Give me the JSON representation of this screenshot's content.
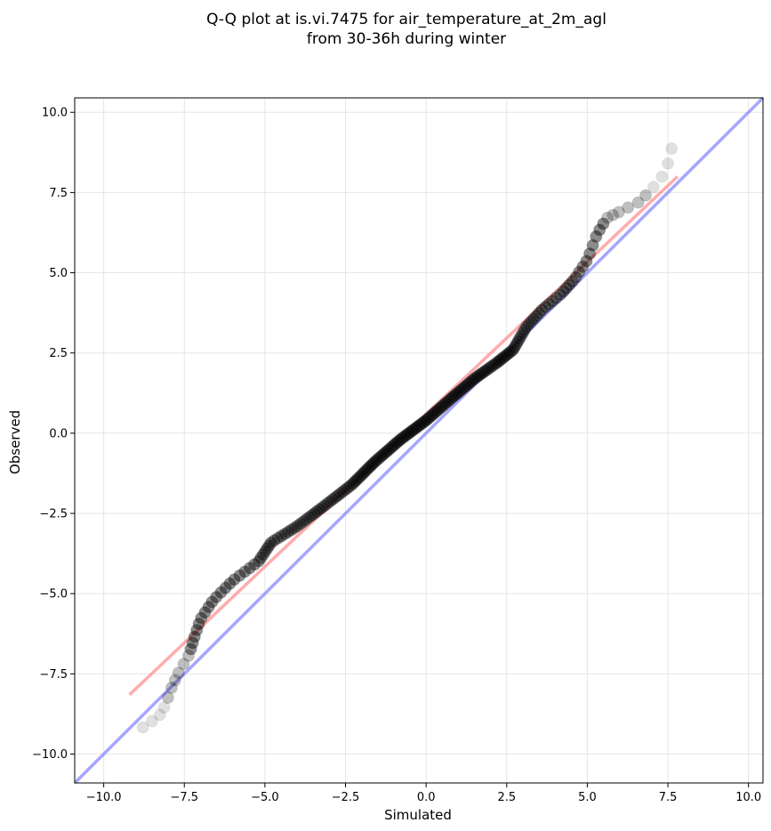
{
  "chart_data": {
    "type": "scatter",
    "title_lines": [
      "Q-Q plot at is.vi.7475 for air_temperature_at_2m_agl",
      "from 30-36h during winter"
    ],
    "xlabel": "Simulated",
    "ylabel": "Observed",
    "xlim": [
      -10.9,
      10.45
    ],
    "ylim": [
      -10.9,
      10.45
    ],
    "xticks": [
      -10.0,
      -7.5,
      -5.0,
      -2.5,
      0.0,
      2.5,
      5.0,
      7.5,
      10.0
    ],
    "yticks": [
      -10.0,
      -7.5,
      -5.0,
      -2.5,
      0.0,
      2.5,
      5.0,
      7.5,
      10.0
    ],
    "xtick_labels": [
      "−10.0",
      "−7.5",
      "−5.0",
      "−2.5",
      "0.0",
      "2.5",
      "5.0",
      "7.5",
      "10.0"
    ],
    "ytick_labels": [
      "−10.0",
      "−7.5",
      "−5.0",
      "−2.5",
      "0.0",
      "2.5",
      "5.0",
      "7.5",
      "10.0"
    ],
    "grid": true,
    "reference_line": {
      "from": [
        -10.9,
        -10.9
      ],
      "to": [
        10.45,
        10.45
      ],
      "color": "#8080ff"
    },
    "fit_line": {
      "from": [
        -9.2,
        -8.15
      ],
      "to": [
        7.8,
        8.0
      ],
      "color": "#ff8080"
    },
    "quantile_curve": [
      [
        -9.2,
        -9.9
      ],
      [
        -9.0,
        -9.35
      ],
      [
        -8.7,
        -9.1
      ],
      [
        -8.3,
        -8.85
      ],
      [
        -8.1,
        -8.5
      ],
      [
        -7.9,
        -7.95
      ],
      [
        -7.7,
        -7.5
      ],
      [
        -7.35,
        -6.9
      ],
      [
        -7.2,
        -6.4
      ],
      [
        -7.0,
        -5.8
      ],
      [
        -6.6,
        -5.2
      ],
      [
        -6.0,
        -4.6
      ],
      [
        -5.2,
        -4.0
      ],
      [
        -4.8,
        -3.4
      ],
      [
        -4.0,
        -2.9
      ],
      [
        -3.2,
        -2.3
      ],
      [
        -2.3,
        -1.6
      ],
      [
        -1.6,
        -0.9
      ],
      [
        -0.8,
        -0.2
      ],
      [
        0.0,
        0.4
      ],
      [
        0.8,
        1.1
      ],
      [
        1.5,
        1.7
      ],
      [
        2.2,
        2.2
      ],
      [
        2.7,
        2.6
      ],
      [
        3.1,
        3.3
      ],
      [
        3.6,
        3.85
      ],
      [
        4.2,
        4.35
      ],
      [
        4.6,
        4.8
      ],
      [
        5.0,
        5.4
      ],
      [
        5.3,
        6.2
      ],
      [
        5.6,
        6.7
      ],
      [
        6.0,
        6.9
      ],
      [
        6.6,
        7.2
      ],
      [
        7.0,
        7.6
      ],
      [
        7.4,
        8.1
      ],
      [
        7.6,
        8.7
      ],
      [
        7.65,
        9.3
      ],
      [
        7.8,
        9.5
      ]
    ],
    "point_count": 200,
    "point_color": "#000000",
    "highlight_colors": {
      "upper": "#0000c0",
      "lower": "#c00000"
    }
  }
}
